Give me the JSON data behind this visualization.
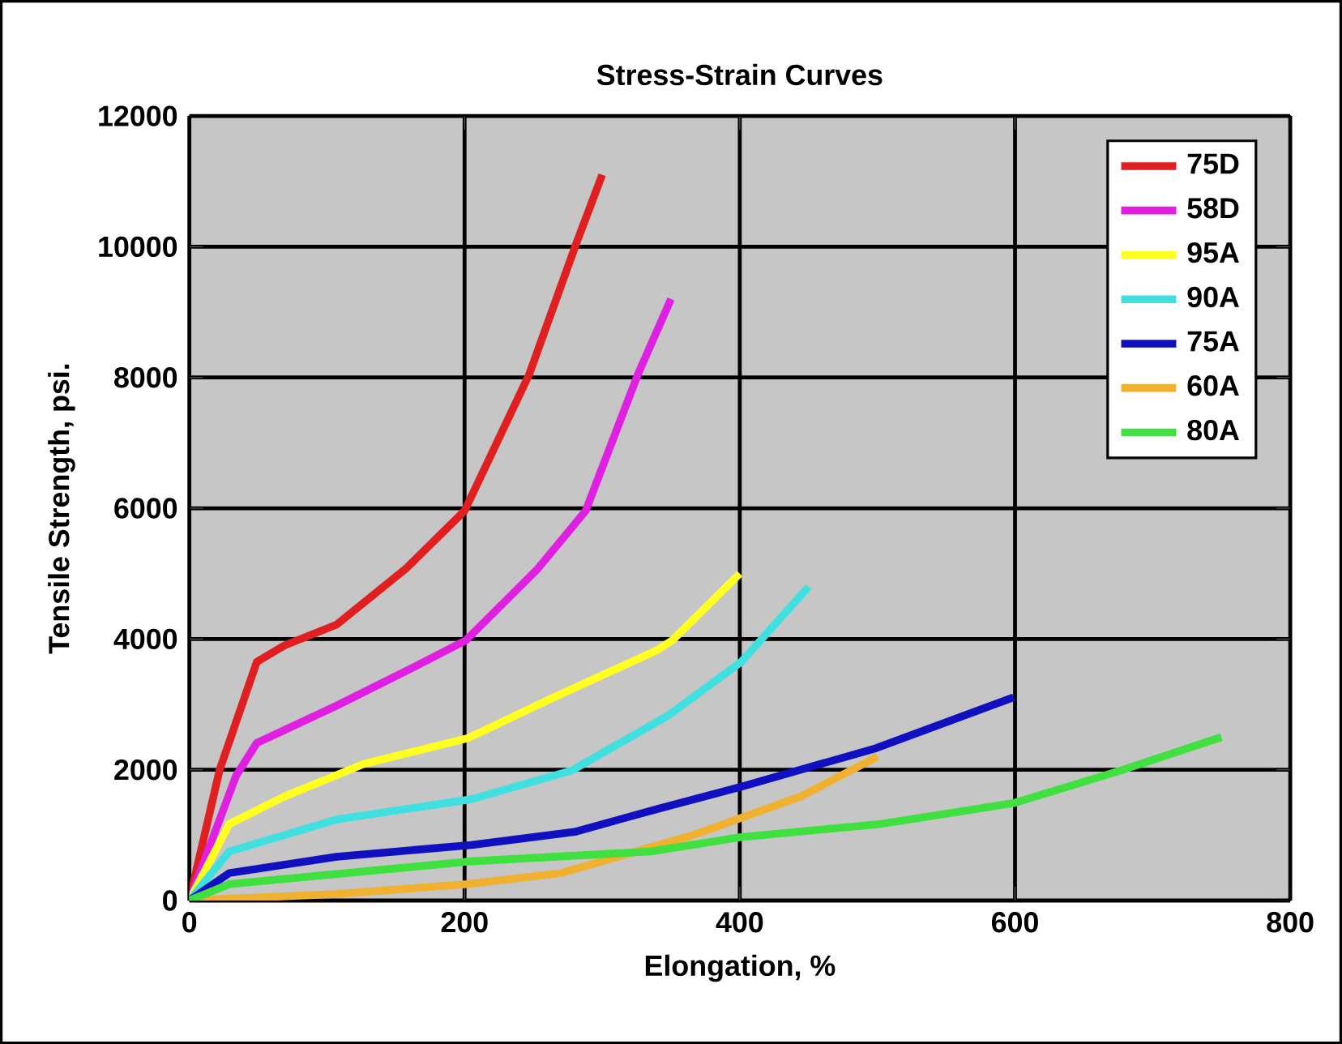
{
  "chart_data": {
    "type": "line",
    "title": "Stress-Strain Curves",
    "xlabel": "Elongation, %",
    "ylabel": "Tensile Strength, psi.",
    "xlim": [
      0,
      800
    ],
    "ylim": [
      0,
      12000
    ],
    "xticks": [
      0,
      200,
      400,
      600,
      800
    ],
    "yticks": [
      0,
      2000,
      4000,
      6000,
      8000,
      10000,
      12000
    ],
    "grid": true,
    "legend": "top right",
    "marker": "none",
    "line_style": "solid",
    "series": [
      {
        "name": "75D",
        "color": "#e02020",
        "x": [
          0,
          22,
          49,
          69,
          107,
          157,
          200,
          247,
          281,
          300
        ],
        "values": [
          0,
          2000,
          3650,
          3900,
          4220,
          5070,
          5960,
          8050,
          10040,
          11100
        ]
      },
      {
        "name": "58D",
        "color": "#e020e0",
        "x": [
          0,
          34,
          49,
          107,
          164,
          201,
          253,
          288,
          326,
          350
        ],
        "values": [
          0,
          1910,
          2410,
          2980,
          3580,
          3980,
          5070,
          5960,
          8050,
          9200
        ]
      },
      {
        "name": "95A",
        "color": "#ffff20",
        "x": [
          0,
          29,
          69,
          127,
          202,
          262,
          340,
          351,
          400
        ],
        "values": [
          0,
          1170,
          1590,
          2090,
          2480,
          3080,
          3830,
          3980,
          5000
        ]
      },
      {
        "name": "90A",
        "color": "#40e0e0",
        "x": [
          0,
          29,
          107,
          205,
          278,
          348,
          401,
          450
        ],
        "values": [
          0,
          750,
          1240,
          1550,
          1990,
          2830,
          3650,
          4800
        ]
      },
      {
        "name": "75A",
        "color": "#1010c0",
        "x": [
          0,
          29,
          107,
          205,
          280,
          340,
          401,
          499,
          599
        ],
        "values": [
          0,
          420,
          670,
          850,
          1050,
          1400,
          1740,
          2330,
          3110
        ]
      },
      {
        "name": "60A",
        "color": "#f0b030",
        "x": [
          0,
          107,
          202,
          270,
          366,
          444,
          500
        ],
        "values": [
          0,
          100,
          250,
          420,
          1000,
          1590,
          2200
        ]
      },
      {
        "name": "80A",
        "color": "#40e040",
        "x": [
          0,
          29,
          205,
          335,
          401,
          502,
          599,
          677,
          750
        ],
        "values": [
          0,
          250,
          600,
          750,
          970,
          1170,
          1490,
          1990,
          2500
        ]
      }
    ]
  }
}
